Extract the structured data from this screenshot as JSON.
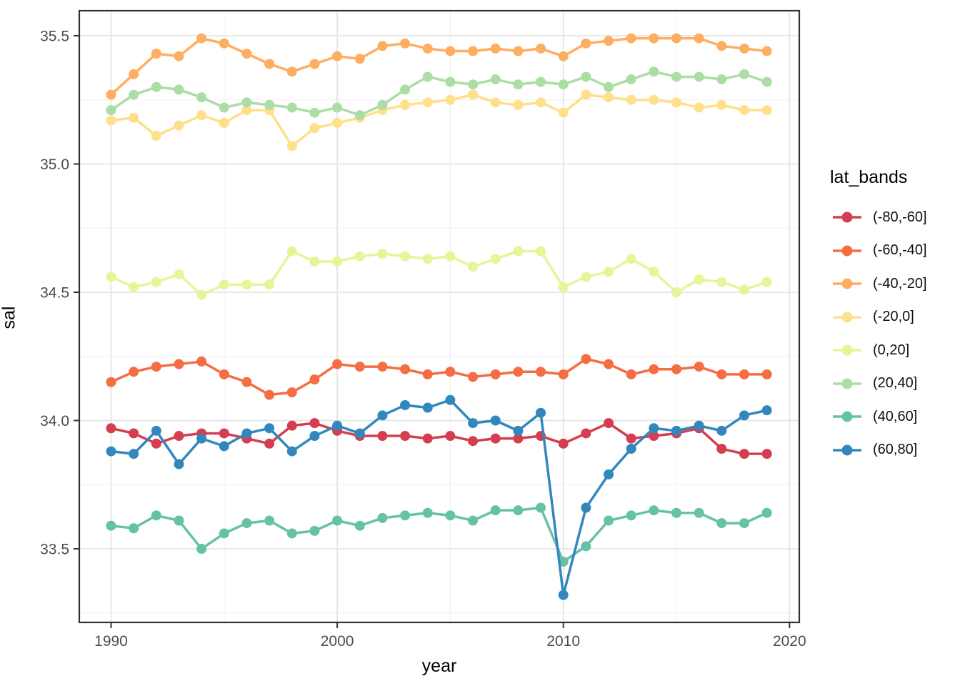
{
  "chart_data": {
    "type": "line",
    "title": "",
    "xlabel": "year",
    "ylabel": "sal",
    "legend_title": "lat_bands",
    "legend_position": "right",
    "grid": true,
    "point_markers": true,
    "xlim": [
      1988.6,
      2020.4
    ],
    "ylim": [
      33.21,
      35.6
    ],
    "x_ticks": [
      1990,
      2000,
      2010,
      2020
    ],
    "x_tick_labels": [
      "1990",
      "2000",
      "2010",
      "2020"
    ],
    "x_minor_ticks": [
      1995,
      2005,
      2015
    ],
    "y_ticks": [
      33.5,
      34.0,
      34.5,
      35.0,
      35.5
    ],
    "y_tick_labels": [
      "33.5",
      "34.0",
      "34.5",
      "35.0",
      "35.5"
    ],
    "y_minor_ticks": [
      33.25,
      33.75,
      34.25,
      34.75,
      35.25
    ],
    "x": [
      1990,
      1991,
      1992,
      1993,
      1994,
      1995,
      1996,
      1997,
      1998,
      1999,
      2000,
      2001,
      2002,
      2003,
      2004,
      2005,
      2006,
      2007,
      2008,
      2009,
      2010,
      2011,
      2012,
      2013,
      2014,
      2015,
      2016,
      2017,
      2018,
      2019
    ],
    "series": [
      {
        "name": "(-80,-60]",
        "color": "#D53E4F",
        "values": [
          33.97,
          33.95,
          33.91,
          33.94,
          33.95,
          33.95,
          33.93,
          33.91,
          33.98,
          33.99,
          33.96,
          33.94,
          33.94,
          33.94,
          33.93,
          33.94,
          33.92,
          33.93,
          33.93,
          33.94,
          33.91,
          33.95,
          33.99,
          33.93,
          33.94,
          33.95,
          33.97,
          33.89,
          33.87,
          33.87
        ]
      },
      {
        "name": "(-60,-40]",
        "color": "#F46D43",
        "values": [
          34.15,
          34.19,
          34.21,
          34.22,
          34.23,
          34.18,
          34.15,
          34.1,
          34.11,
          34.16,
          34.22,
          34.21,
          34.21,
          34.2,
          34.18,
          34.19,
          34.17,
          34.18,
          34.19,
          34.19,
          34.18,
          34.24,
          34.22,
          34.18,
          34.2,
          34.2,
          34.21,
          34.18,
          34.18,
          34.18
        ]
      },
      {
        "name": "(-40,-20]",
        "color": "#FDAE61",
        "values": [
          35.27,
          35.35,
          35.43,
          35.42,
          35.49,
          35.47,
          35.43,
          35.39,
          35.36,
          35.39,
          35.42,
          35.41,
          35.46,
          35.47,
          35.45,
          35.44,
          35.44,
          35.45,
          35.44,
          35.45,
          35.42,
          35.47,
          35.48,
          35.49,
          35.49,
          35.49,
          35.49,
          35.46,
          35.45,
          35.44
        ]
      },
      {
        "name": "(-20,0]",
        "color": "#FEE08B",
        "values": [
          35.17,
          35.18,
          35.11,
          35.15,
          35.19,
          35.16,
          35.21,
          35.21,
          35.07,
          35.14,
          35.16,
          35.18,
          35.21,
          35.23,
          35.24,
          35.25,
          35.27,
          35.24,
          35.23,
          35.24,
          35.2,
          35.27,
          35.26,
          35.25,
          35.25,
          35.24,
          35.22,
          35.23,
          35.21,
          35.21
        ]
      },
      {
        "name": "(0,20]",
        "color": "#E6F598",
        "values": [
          34.56,
          34.52,
          34.54,
          34.57,
          34.49,
          34.53,
          34.53,
          34.53,
          34.66,
          34.62,
          34.62,
          34.64,
          34.65,
          34.64,
          34.63,
          34.64,
          34.6,
          34.63,
          34.66,
          34.66,
          34.52,
          34.56,
          34.58,
          34.63,
          34.58,
          34.5,
          34.55,
          34.54,
          34.51,
          34.54
        ]
      },
      {
        "name": "(20,40]",
        "color": "#ABDDA4",
        "values": [
          35.21,
          35.27,
          35.3,
          35.29,
          35.26,
          35.22,
          35.24,
          35.23,
          35.22,
          35.2,
          35.22,
          35.19,
          35.23,
          35.29,
          35.34,
          35.32,
          35.31,
          35.33,
          35.31,
          35.32,
          35.31,
          35.34,
          35.3,
          35.33,
          35.36,
          35.34,
          35.34,
          35.33,
          35.35,
          35.32
        ]
      },
      {
        "name": "(40,60]",
        "color": "#66C2A5",
        "values": [
          33.59,
          33.58,
          33.63,
          33.61,
          33.5,
          33.56,
          33.6,
          33.61,
          33.56,
          33.57,
          33.61,
          33.59,
          33.62,
          33.63,
          33.64,
          33.63,
          33.61,
          33.65,
          33.65,
          33.66,
          33.45,
          33.51,
          33.61,
          33.63,
          33.65,
          33.64,
          33.64,
          33.6,
          33.6,
          33.64
        ]
      },
      {
        "name": "(60,80]",
        "color": "#3288BD",
        "values": [
          33.88,
          33.87,
          33.96,
          33.83,
          33.93,
          33.9,
          33.95,
          33.97,
          33.88,
          33.94,
          33.98,
          33.95,
          34.02,
          34.06,
          34.05,
          34.08,
          33.99,
          34.0,
          33.96,
          34.03,
          33.32,
          33.66,
          33.79,
          33.89,
          33.97,
          33.96,
          33.98,
          33.96,
          34.02,
          34.04
        ]
      }
    ]
  }
}
